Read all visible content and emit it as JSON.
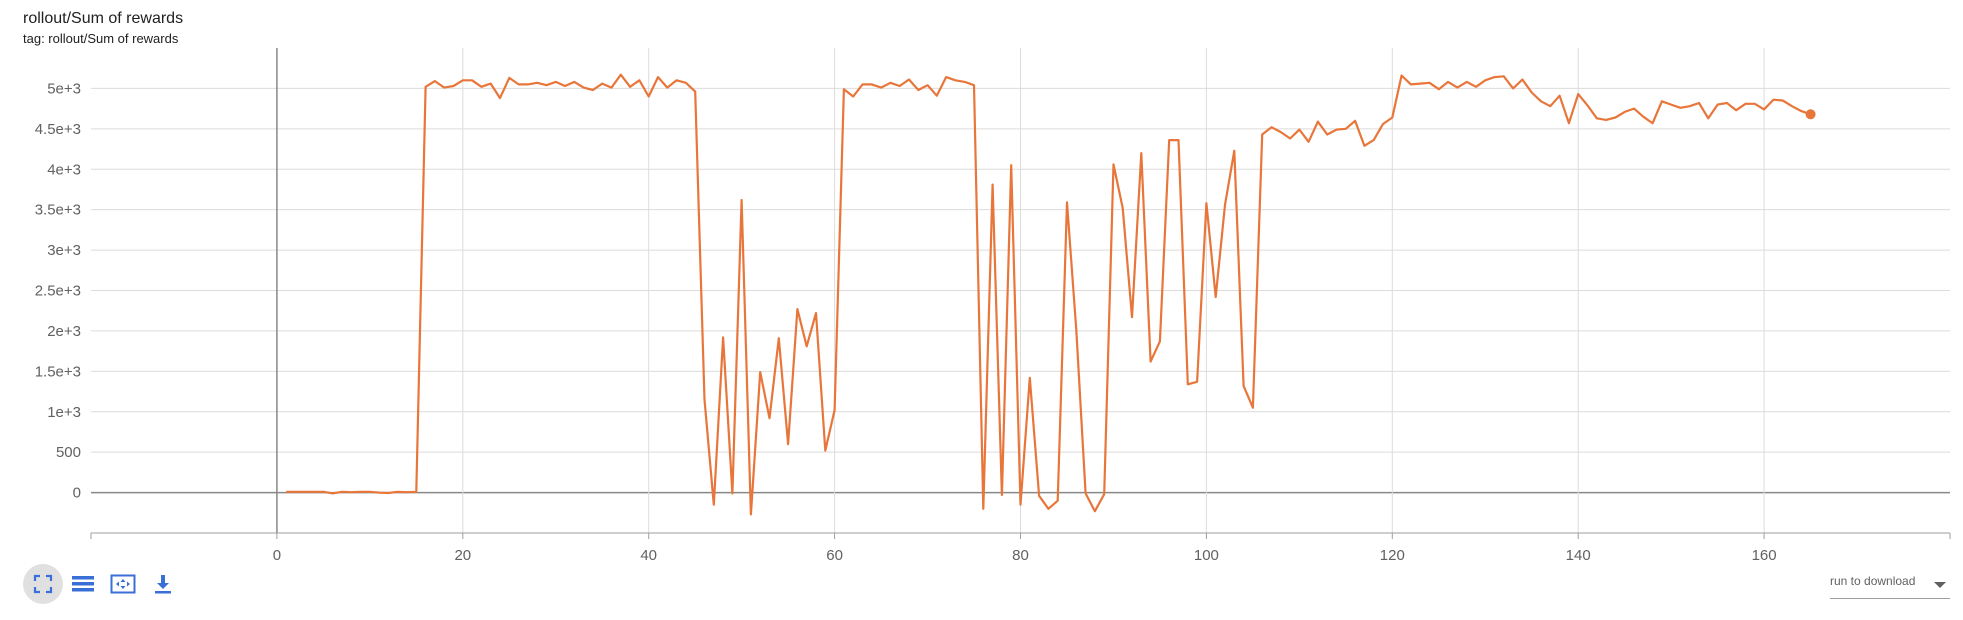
{
  "title": "rollout/Sum of rewards",
  "subtitle": "tag: rollout/Sum of rewards",
  "colors": {
    "series": "#e8763a",
    "grid": "#dcdcdc",
    "axis": "#9e9e9e",
    "zero_line": "#888888"
  },
  "toolbar": {
    "buttons": [
      {
        "icon": "fit-domain-icon",
        "active": true
      },
      {
        "icon": "log-scale-icon",
        "active": false
      },
      {
        "icon": "expand-icon",
        "active": false
      },
      {
        "icon": "download-icon",
        "active": false
      }
    ]
  },
  "download": {
    "label": "run to download"
  },
  "chart_data": {
    "type": "line",
    "title": "rollout/Sum of rewards",
    "xlabel": "",
    "ylabel": "",
    "xlim": [
      -20,
      180
    ],
    "ylim": [
      -500,
      5500
    ],
    "x_ticks": [
      0,
      20,
      40,
      60,
      80,
      100,
      120,
      140,
      160
    ],
    "x_tick_labels": [
      "0",
      "20",
      "40",
      "60",
      "80",
      "100",
      "120",
      "140",
      "160"
    ],
    "y_ticks": [
      0,
      500,
      1000,
      1500,
      2000,
      2500,
      3000,
      3500,
      4000,
      4500,
      5000
    ],
    "y_tick_labels": [
      "0",
      "500",
      "1e+3",
      "1.5e+3",
      "2e+3",
      "2.5e+3",
      "3e+3",
      "3.5e+3",
      "4e+3",
      "4.5e+3",
      "5e+3"
    ],
    "grid": true,
    "series": [
      {
        "x": [
          1,
          2,
          3,
          4,
          5,
          6,
          7,
          8,
          9,
          10,
          11,
          12,
          13,
          14,
          15,
          16,
          17,
          18,
          19,
          20,
          21,
          22,
          23,
          24,
          25,
          26,
          27,
          28,
          29,
          30,
          31,
          32,
          33,
          34,
          35,
          36,
          37,
          38,
          39,
          40,
          41,
          42,
          43,
          44,
          45,
          46,
          47,
          48,
          49,
          50,
          51,
          52,
          53,
          54,
          55,
          56,
          57,
          58,
          59,
          60,
          61,
          62,
          63,
          64,
          65,
          66,
          67,
          68,
          69,
          70,
          71,
          72,
          73,
          74,
          75,
          76,
          77,
          78,
          79,
          80,
          81,
          82,
          83,
          84,
          85,
          86,
          87,
          88,
          89,
          90,
          91,
          92,
          93,
          94,
          95,
          96,
          97,
          98,
          99,
          100,
          101,
          102,
          103,
          104,
          105,
          106,
          107,
          108,
          109,
          110,
          111,
          112,
          113,
          114,
          115,
          116,
          117,
          118,
          119,
          120,
          121,
          122,
          123,
          124,
          125,
          126,
          127,
          128,
          129,
          130,
          131,
          132,
          133,
          134,
          135,
          136,
          137,
          138,
          139,
          140,
          141,
          142,
          143,
          144,
          145,
          146,
          147,
          148,
          149,
          150,
          151,
          152,
          153,
          154,
          155,
          156,
          157,
          158,
          159,
          160,
          161,
          162,
          163,
          164,
          165
        ],
        "y": [
          10,
          10,
          10,
          10,
          10,
          -10,
          10,
          5,
          10,
          10,
          0,
          -5,
          10,
          5,
          10,
          5020,
          5090,
          5010,
          5030,
          5100,
          5100,
          5020,
          5060,
          4880,
          5130,
          5050,
          5050,
          5070,
          5040,
          5080,
          5030,
          5080,
          5010,
          4980,
          5060,
          5010,
          5170,
          5020,
          5100,
          4900,
          5140,
          5010,
          5100,
          5070,
          4960,
          1150,
          -150,
          1920,
          -10,
          3620,
          -270,
          1490,
          920,
          1910,
          600,
          2270,
          1810,
          2220,
          520,
          1020,
          4990,
          4900,
          5050,
          5050,
          5010,
          5070,
          5030,
          5110,
          4980,
          5040,
          4910,
          5140,
          5100,
          5080,
          5040,
          -200,
          3810,
          -30,
          4050,
          -150,
          1420,
          -40,
          -200,
          -100,
          3590,
          2010,
          -10,
          -230,
          -20,
          4060,
          3520,
          2170,
          4200,
          1620,
          1870,
          4360,
          4360,
          1340,
          1370,
          3580,
          2420,
          3560,
          4230,
          1320,
          1050,
          4430,
          4520,
          4460,
          4380,
          4490,
          4340,
          4590,
          4430,
          4490,
          4500,
          4600,
          4290,
          4360,
          4560,
          4640,
          5160,
          5050,
          5060,
          5070,
          4990,
          5080,
          5010,
          5080,
          5020,
          5100,
          5140,
          5150,
          5000,
          5110,
          4950,
          4840,
          4780,
          4910,
          4570,
          4930,
          4790,
          4630,
          4610,
          4640,
          4710,
          4750,
          4650,
          4570,
          4840,
          4800,
          4760,
          4780,
          4820,
          4630,
          4800,
          4820,
          4730,
          4810,
          4810,
          4740,
          4860,
          4850,
          4780,
          4720,
          4680
        ]
      }
    ]
  }
}
